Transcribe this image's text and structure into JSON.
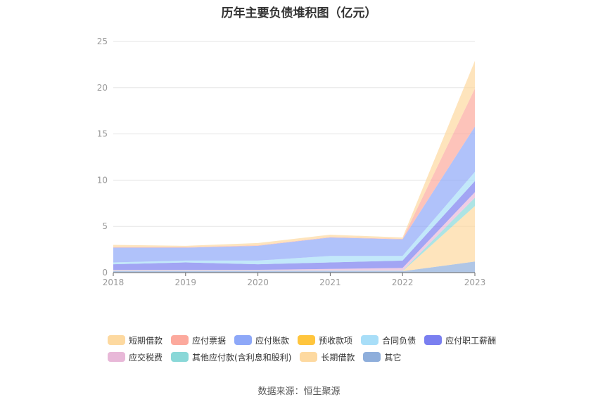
{
  "title": "历年主要负债堆积图（亿元）",
  "source": "数据来源：恒生聚源",
  "chart_data": {
    "type": "area",
    "stacked": true,
    "categories": [
      "2018",
      "2019",
      "2020",
      "2021",
      "2022",
      "2023"
    ],
    "ylim": [
      0,
      25
    ],
    "yticks": [
      0,
      5,
      10,
      15,
      20,
      25
    ],
    "grid": true,
    "legend_position": "bottom",
    "series": [
      {
        "name": "其它",
        "color": "#8eaedb",
        "values": [
          0.15,
          0.15,
          0.15,
          0.15,
          0.15,
          1.2
        ]
      },
      {
        "name": "长期借款",
        "color": "#fdd9a0",
        "values": [
          0,
          0,
          0,
          0,
          0,
          6.0
        ]
      },
      {
        "name": "其他应付款(含利息和股利)",
        "color": "#8ad8d8",
        "values": [
          0.05,
          0.05,
          0.05,
          0.05,
          0.05,
          0.9
        ]
      },
      {
        "name": "应交税费",
        "color": "#e8b8d8",
        "values": [
          0.1,
          0.1,
          0.1,
          0.2,
          0.3,
          0.6
        ]
      },
      {
        "name": "应付职工薪酬",
        "color": "#7a7ff0",
        "values": [
          0.6,
          0.8,
          0.6,
          0.7,
          0.8,
          1.2
        ]
      },
      {
        "name": "合同负债",
        "color": "#a8def8",
        "values": [
          0.2,
          0.2,
          0.4,
          0.7,
          0.5,
          1.0
        ]
      },
      {
        "name": "预收款项",
        "color": "#ffc53d",
        "values": [
          0,
          0,
          0,
          0,
          0,
          0
        ]
      },
      {
        "name": "应付账款",
        "color": "#8ea8f8",
        "values": [
          1.6,
          1.4,
          1.6,
          2.0,
          1.8,
          4.9
        ]
      },
      {
        "name": "应付票据",
        "color": "#fca99d",
        "values": [
          0.05,
          0.05,
          0.05,
          0.05,
          0.05,
          4.1
        ]
      },
      {
        "name": "短期借款",
        "color": "#fdd9a0",
        "values": [
          0.25,
          0.15,
          0.25,
          0.25,
          0.15,
          3.0
        ]
      }
    ]
  },
  "legend": {
    "row1": [
      {
        "label": "短期借款",
        "color": "#fdd9a0"
      },
      {
        "label": "应付票据",
        "color": "#fca99d"
      },
      {
        "label": "应付账款",
        "color": "#8ea8f8"
      },
      {
        "label": "预收款项",
        "color": "#ffc53d"
      },
      {
        "label": "合同负债",
        "color": "#a8def8"
      },
      {
        "label": "应付职工薪酬",
        "color": "#7a7ff0"
      }
    ],
    "row2": [
      {
        "label": "应交税费",
        "color": "#e8b8d8"
      },
      {
        "label": "其他应付款(含利息和股利)",
        "color": "#8ad8d8"
      },
      {
        "label": "长期借款",
        "color": "#fdd9a0"
      },
      {
        "label": "其它",
        "color": "#8eaedb"
      }
    ]
  }
}
